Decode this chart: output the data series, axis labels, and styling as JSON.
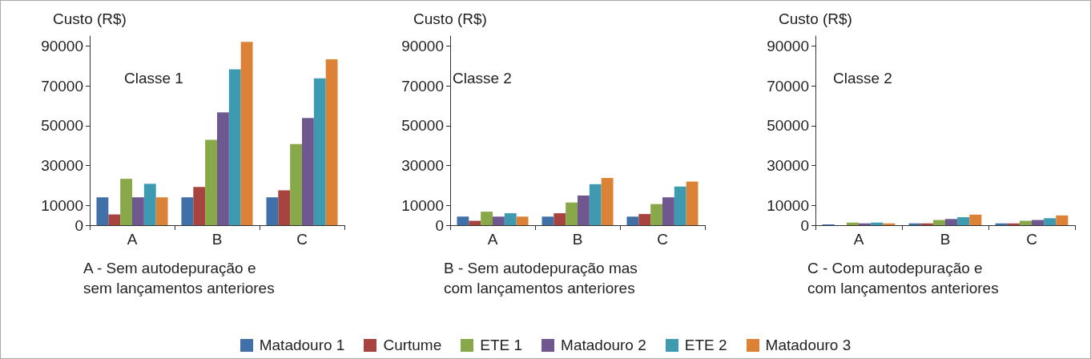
{
  "chart_data": [
    {
      "type": "bar",
      "title": "Classe 1",
      "ylabel": "Custo (R$)",
      "xlabel": "A - Sem autodepuração e\nsem lançamentos anteriores",
      "categories": [
        "A",
        "B",
        "C"
      ],
      "ylim": [
        0,
        95000
      ],
      "yticks": [
        0,
        10000,
        30000,
        50000,
        70000,
        90000
      ],
      "grid": false,
      "legend": "bottom",
      "series": [
        {
          "name": "Matadouro 1",
          "color": "#3f70a8",
          "values": [
            14000,
            14000,
            14000
          ]
        },
        {
          "name": "Curtume",
          "color": "#a84440",
          "values": [
            5400,
            19200,
            17500
          ]
        },
        {
          "name": "ETE 1",
          "color": "#88a84a",
          "values": [
            23300,
            42900,
            40800
          ]
        },
        {
          "name": "Matadouro 2",
          "color": "#6f5890",
          "values": [
            14000,
            56700,
            53800
          ]
        },
        {
          "name": "ETE 2",
          "color": "#3e9ab0",
          "values": [
            20800,
            78300,
            73800
          ]
        },
        {
          "name": "Matadouro 3",
          "color": "#dc8236",
          "values": [
            14000,
            92100,
            83300
          ]
        }
      ]
    },
    {
      "type": "bar",
      "title": "Classe 2",
      "ylabel": "Custo (R$)",
      "xlabel": "B - Sem autodepuração mas\ncom lançamentos anteriores",
      "categories": [
        "A",
        "B",
        "C"
      ],
      "ylim": [
        0,
        95000
      ],
      "yticks": [
        0,
        10000,
        30000,
        50000,
        70000,
        90000
      ],
      "grid": false,
      "series": [
        {
          "color": "#3f70a8",
          "values": [
            4300,
            4300,
            4300
          ]
        },
        {
          "color": "#a84440",
          "values": [
            2200,
            6000,
            5600
          ]
        },
        {
          "color": "#88a84a",
          "values": [
            6800,
            11400,
            10600
          ]
        },
        {
          "color": "#6f5890",
          "values": [
            4300,
            14900,
            14000
          ]
        },
        {
          "color": "#3e9ab0",
          "values": [
            6000,
            20600,
            19400
          ]
        },
        {
          "color": "#dc8236",
          "values": [
            4300,
            23700,
            21900
          ]
        }
      ]
    },
    {
      "type": "bar",
      "title": "Classe 2",
      "ylabel": "Custo (R$)",
      "xlabel": "C - Com autodepuração e\ncom lançamentos anteriores",
      "categories": [
        "A",
        "B",
        "C"
      ],
      "ylim": [
        0,
        95000
      ],
      "yticks": [
        0,
        10000,
        30000,
        50000,
        70000,
        90000
      ],
      "grid": false,
      "series": [
        {
          "color": "#3f70a8",
          "values": [
            400,
            900,
            900
          ]
        },
        {
          "color": "#a84440",
          "values": [
            null,
            900,
            900
          ]
        },
        {
          "color": "#88a84a",
          "values": [
            1300,
            2600,
            2200
          ]
        },
        {
          "color": "#6f5890",
          "values": [
            900,
            3100,
            2600
          ]
        },
        {
          "color": "#3e9ab0",
          "values": [
            1300,
            4000,
            3500
          ]
        },
        {
          "color": "#dc8236",
          "values": [
            900,
            5300,
            4900
          ]
        }
      ]
    }
  ]
}
